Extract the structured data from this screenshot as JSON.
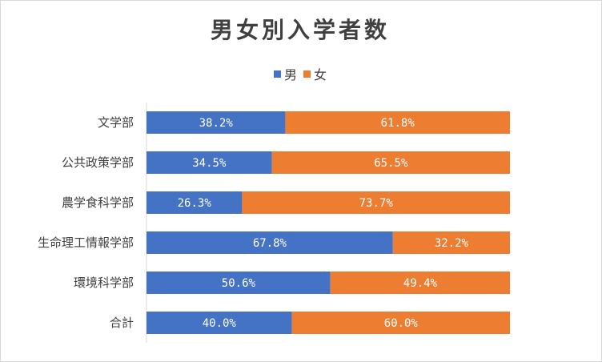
{
  "chart_data": {
    "type": "bar",
    "orientation": "horizontal",
    "stacked": "100%",
    "title": "男女別入学者数",
    "categories": [
      "文学部",
      "公共政策学部",
      "農学食科学部",
      "生命理工情報学部",
      "環境科学部",
      "合計"
    ],
    "series": [
      {
        "name": "男",
        "color": "#4472c4",
        "values": [
          38.2,
          34.5,
          26.3,
          67.8,
          50.6,
          40.0
        ],
        "labels": [
          "38.2%",
          "34.5%",
          "26.3%",
          "67.8%",
          "50.6%",
          "40.0%"
        ]
      },
      {
        "name": "女",
        "color": "#ed7d31",
        "values": [
          61.8,
          65.5,
          73.7,
          32.2,
          49.4,
          60.0
        ],
        "labels": [
          "61.8%",
          "65.5%",
          "73.7%",
          "32.2%",
          "49.4%",
          "60.0%"
        ]
      }
    ],
    "xlim": [
      0,
      100
    ],
    "grid": false,
    "legend_position": "top"
  }
}
